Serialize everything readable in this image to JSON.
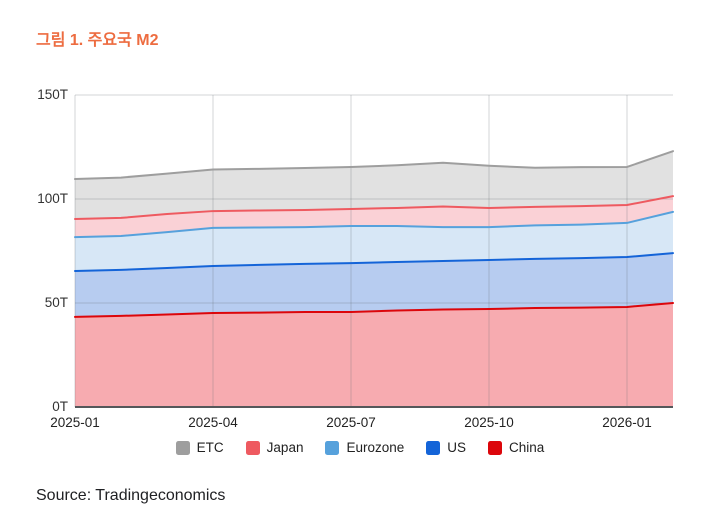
{
  "header": {
    "title": "그림 1. 주요국 M2"
  },
  "footer": {
    "source": "Source: Tradingeconomics"
  },
  "colors": {
    "title": "#ED6C40",
    "axis_text": "#333333",
    "x_axis_text": "#222222",
    "grid": "rgba(96,104,110,0.28)",
    "axis_line": "#55575A",
    "background": "#ffffff"
  },
  "chart_data": {
    "type": "area",
    "stacked": true,
    "title": "그림 1. 주요국 M2",
    "xlabel": "",
    "ylabel": "",
    "unit": "T",
    "grid": true,
    "legend_position": "bottom",
    "ylim": [
      0,
      150
    ],
    "y_ticks": [
      {
        "value": 0,
        "label": "0T"
      },
      {
        "value": 50,
        "label": "50T"
      },
      {
        "value": 100,
        "label": "100T"
      },
      {
        "value": 150,
        "label": "150T"
      }
    ],
    "x": [
      "2025-01",
      "2025-02",
      "2025-03",
      "2025-04",
      "2025-05",
      "2025-06",
      "2025-07",
      "2025-08",
      "2025-09",
      "2025-10",
      "2025-11",
      "2025-12",
      "2026-01",
      "2026-02"
    ],
    "x_tick_indices": [
      0,
      3,
      6,
      9,
      12
    ],
    "stack_note": "series listed in legend order; stacking bottom-to-top is the reverse (China at bottom, ETC on top); values in trillions (T)",
    "series": [
      {
        "name": "ETC",
        "color": "#9E9E9E",
        "fill": "#E1E1E1",
        "values": [
          19.2,
          19.4,
          19.4,
          20.0,
          20.0,
          20.2,
          20.2,
          20.5,
          21.0,
          20.3,
          18.8,
          18.7,
          18.3,
          21.6
        ]
      },
      {
        "name": "Japan",
        "color": "#EE5A60",
        "fill": "#FAD1D6",
        "values": [
          8.7,
          8.7,
          8.7,
          8.1,
          8.2,
          8.2,
          8.2,
          8.7,
          9.9,
          9.2,
          8.9,
          8.9,
          8.6,
          7.6
        ]
      },
      {
        "name": "Eurozone",
        "color": "#56A1DC",
        "fill": "#D7E7F6",
        "values": [
          16.3,
          16.3,
          17.3,
          18.3,
          18.0,
          17.7,
          17.8,
          17.3,
          16.3,
          15.8,
          16.1,
          16.1,
          16.4,
          19.8
        ]
      },
      {
        "name": "US",
        "color": "#1464D8",
        "fill": "#B7CCF0",
        "values": [
          22.1,
          22.1,
          22.3,
          22.6,
          22.9,
          23.1,
          23.5,
          23.3,
          23.3,
          23.6,
          23.6,
          23.8,
          24.0,
          24.0
        ]
      },
      {
        "name": "China",
        "color": "#DC060B",
        "fill": "#F7ABB0",
        "values": [
          43.3,
          43.8,
          44.5,
          45.2,
          45.4,
          45.7,
          45.7,
          46.4,
          46.9,
          47.1,
          47.6,
          47.8,
          48.1,
          50.0
        ]
      }
    ]
  }
}
